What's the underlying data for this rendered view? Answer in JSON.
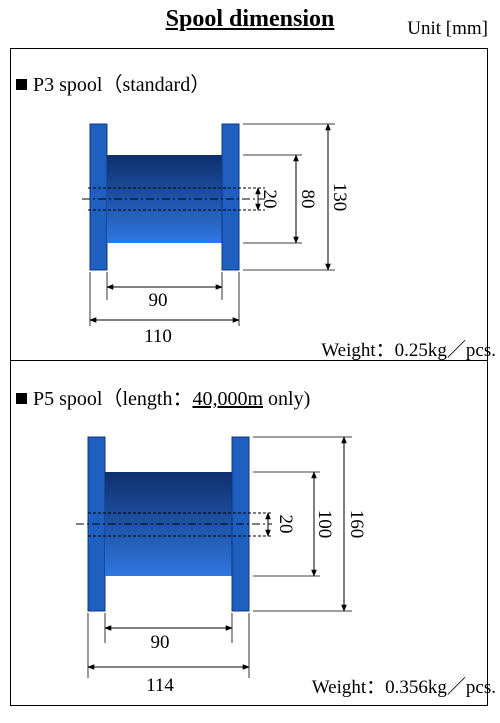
{
  "header": {
    "title": "Spool dimension",
    "unit": "Unit [mm]"
  },
  "p3": {
    "name": "P3 spool（standard）",
    "dims": {
      "bore": "20",
      "barrel": "80",
      "flange": "130",
      "traverse": "90",
      "overall": "110"
    },
    "weight": "Weight：0.25kg／pcs."
  },
  "p5": {
    "name_prefix": "P5 spool（length：",
    "name_length": "40,000m",
    "name_suffix": " only)",
    "dims": {
      "bore": "20",
      "barrel": "100",
      "flange": "160",
      "traverse": "90",
      "overall": "114"
    },
    "weight": "Weight：0.356kg／pcs."
  },
  "colors": {
    "flange": "#1f5fbf",
    "barrel_top": "#0f2f6e",
    "barrel_bottom": "#2f77e0",
    "line": "#000000"
  }
}
